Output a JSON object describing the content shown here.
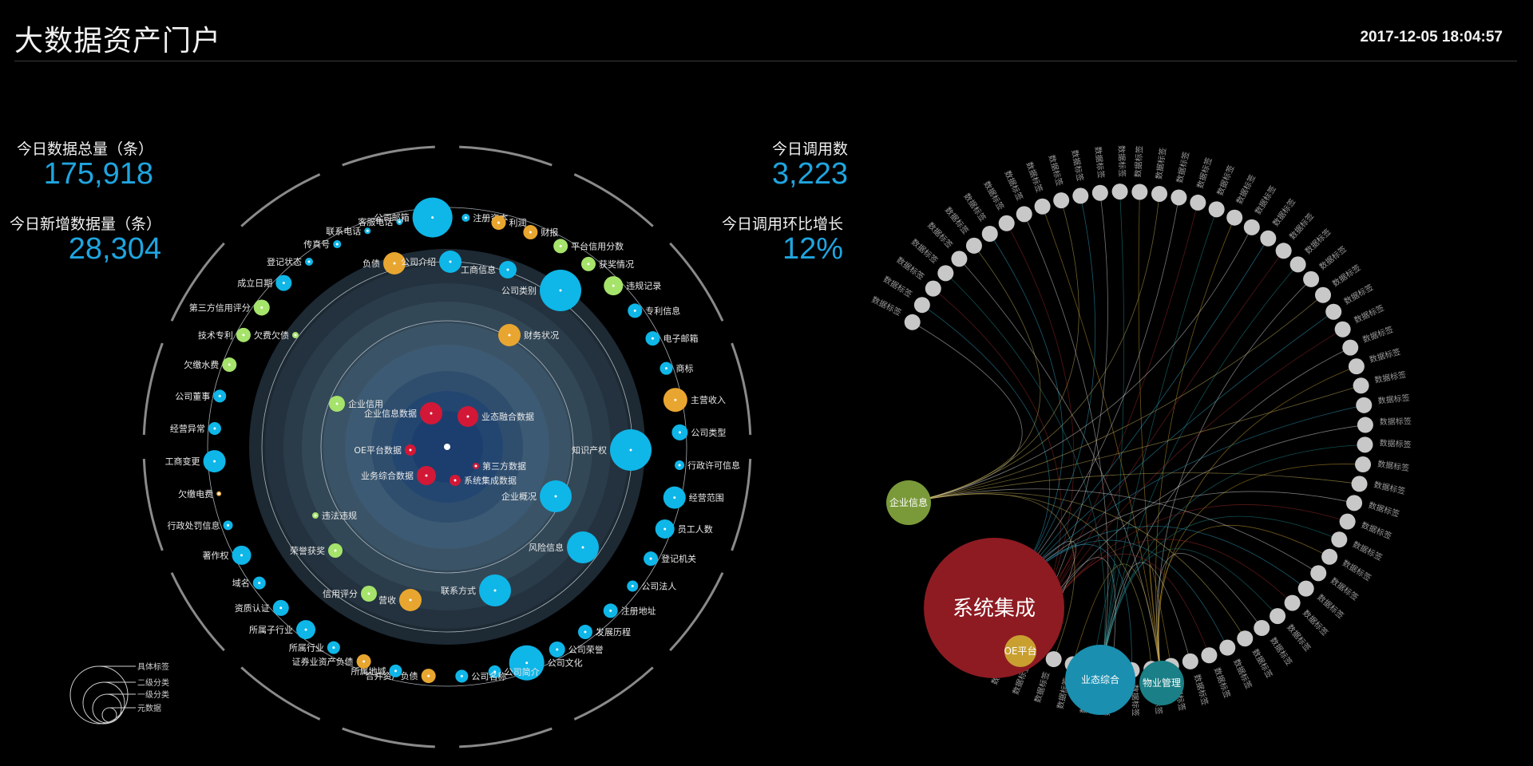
{
  "header": {
    "title": "大数据资产门户",
    "datetime": "2017-12-05 18:04:57"
  },
  "stats": {
    "total_label": "今日数据总量（条）",
    "total_value": "175,918",
    "new_label": "今日新增数据量（条）",
    "new_value": "28,304",
    "calls_label": "今日调用数",
    "calls_value": "3,223",
    "growth_label": "今日调用环比增长",
    "growth_value": "12%"
  },
  "colors": {
    "blue": "#0fb6e8",
    "green": "#a5e36b",
    "orange": "#e8a630",
    "red": "#d21836",
    "gray_node": "#c8c8c8",
    "stat_value": "#1fa5e0"
  },
  "left_graph": {
    "center_labels": [
      {
        "text": "企业信息数据",
        "color": "red"
      },
      {
        "text": "业态融合数据",
        "color": "red"
      },
      {
        "text": "OE平台数据",
        "color": "red"
      },
      {
        "text": "第三方数据",
        "color": "red"
      },
      {
        "text": "业务综合数据",
        "color": "red"
      },
      {
        "text": "系统集成数据",
        "color": "red"
      }
    ],
    "mid_labels": [
      {
        "text": "企业信用",
        "color": "green"
      },
      {
        "text": "财务状况",
        "color": "orange"
      },
      {
        "text": "知识产权",
        "color": "blue"
      },
      {
        "text": "企业概况",
        "color": "blue"
      },
      {
        "text": "风险信息",
        "color": "blue"
      },
      {
        "text": "联系方式",
        "color": "blue"
      },
      {
        "text": "信用评分",
        "color": "green"
      },
      {
        "text": "荣誉获奖",
        "color": "green"
      },
      {
        "text": "违法违规",
        "color": "green"
      },
      {
        "text": "欠费欠债",
        "color": "green"
      },
      {
        "text": "负债",
        "color": "orange"
      },
      {
        "text": "公司介绍",
        "color": "blue"
      },
      {
        "text": "工商信息",
        "color": "blue"
      },
      {
        "text": "公司类别",
        "color": "blue"
      },
      {
        "text": "营收",
        "color": "orange"
      }
    ],
    "outer_labels": [
      {
        "text": "公司类型",
        "color": "blue"
      },
      {
        "text": "行政许可信息",
        "color": "blue"
      },
      {
        "text": "经营范围",
        "color": "blue"
      },
      {
        "text": "员工人数",
        "color": "blue"
      },
      {
        "text": "登记机关",
        "color": "blue"
      },
      {
        "text": "公司法人",
        "color": "blue"
      },
      {
        "text": "注册地址",
        "color": "blue"
      },
      {
        "text": "发展历程",
        "color": "blue"
      },
      {
        "text": "公司荣誉",
        "color": "blue"
      },
      {
        "text": "公司文化",
        "color": "blue"
      },
      {
        "text": "公司简介",
        "color": "blue"
      },
      {
        "text": "公司名称",
        "color": "blue"
      },
      {
        "text": "合并资产负债",
        "color": "orange"
      },
      {
        "text": "所属地域",
        "color": "blue"
      },
      {
        "text": "证券业资产负债",
        "color": "orange"
      },
      {
        "text": "所属行业",
        "color": "blue"
      },
      {
        "text": "所属子行业",
        "color": "blue"
      },
      {
        "text": "资质认证",
        "color": "blue"
      },
      {
        "text": "域名",
        "color": "blue"
      },
      {
        "text": "著作权",
        "color": "blue"
      },
      {
        "text": "行政处罚信息",
        "color": "blue"
      },
      {
        "text": "欠缴电费",
        "color": "orange"
      },
      {
        "text": "工商变更",
        "color": "blue"
      },
      {
        "text": "经营异常",
        "color": "blue"
      },
      {
        "text": "公司董事",
        "color": "blue"
      },
      {
        "text": "欠缴水费",
        "color": "green"
      },
      {
        "text": "技术专利",
        "color": "green"
      },
      {
        "text": "第三方信用评分",
        "color": "green"
      },
      {
        "text": "成立日期",
        "color": "blue"
      },
      {
        "text": "登记状态",
        "color": "blue"
      },
      {
        "text": "传真号",
        "color": "blue"
      },
      {
        "text": "联系电话",
        "color": "blue"
      },
      {
        "text": "客服电话",
        "color": "blue"
      },
      {
        "text": "公司邮箱",
        "color": "blue"
      },
      {
        "text": "注册资本",
        "color": "blue"
      },
      {
        "text": "利润",
        "color": "orange"
      },
      {
        "text": "财报",
        "color": "orange"
      },
      {
        "text": "平台信用分数",
        "color": "green"
      },
      {
        "text": "获奖情况",
        "color": "green"
      },
      {
        "text": "违规记录",
        "color": "green"
      },
      {
        "text": "专利信息",
        "color": "blue"
      },
      {
        "text": "电子邮箱",
        "color": "blue"
      },
      {
        "text": "商标",
        "color": "blue"
      },
      {
        "text": "主营收入",
        "color": "orange"
      }
    ]
  },
  "legend": {
    "items": [
      "具体标签",
      "二级分类",
      "一级分类",
      "元数据"
    ]
  },
  "right_graph": {
    "hubs": [
      {
        "label": "企业信息",
        "color": "#7a9a3a"
      },
      {
        "label": "系统集成",
        "color": "#8e1b22"
      },
      {
        "label": "OE平台",
        "color": "#c9a030"
      },
      {
        "label": "业态综合",
        "color": "#1a8fb0"
      },
      {
        "label": "物业管理",
        "color": "#1a7f86"
      }
    ],
    "ring_label": "数据标签"
  }
}
